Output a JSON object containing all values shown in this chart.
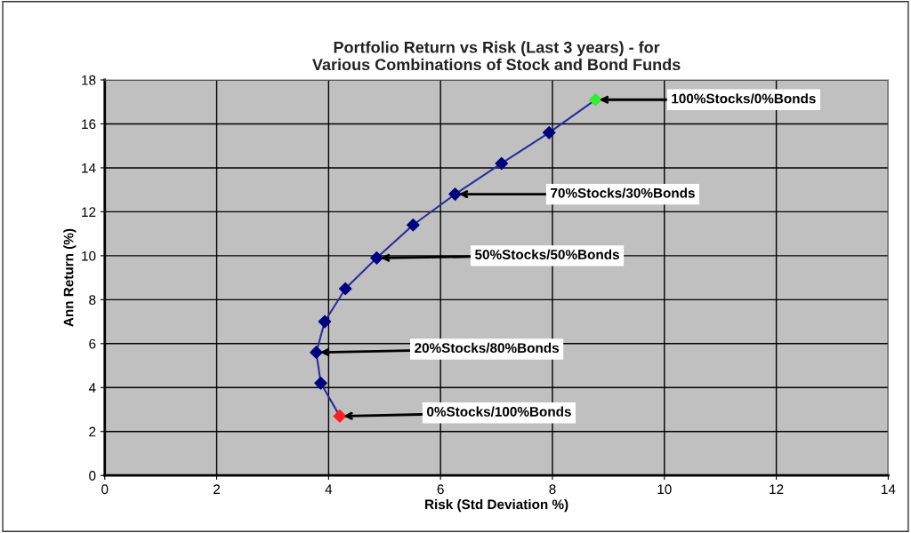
{
  "chart_data": {
    "type": "line",
    "title": "Portfolio Return vs Risk (Last 3 years) - for\nVarious Combinations of Stock and Bond Funds",
    "xlabel": "Risk (Std Deviation %)",
    "ylabel": "Ann Return (%)",
    "x": [
      4.2,
      3.86,
      3.78,
      3.93,
      4.3,
      4.86,
      5.51,
      6.26,
      7.09,
      7.94,
      8.77
    ],
    "series": [
      {
        "color": "#2b2b9e",
        "values": [
          2.7,
          4.2,
          5.6,
          7.0,
          8.5,
          9.9,
          11.4,
          12.8,
          14.2,
          15.6,
          17.1
        ],
        "colors": [
          "#ff2020",
          "#000080",
          "#000080",
          "#000080",
          "#000080",
          "#000080",
          "#000080",
          "#000080",
          "#000080",
          "#000080",
          "#33ee33"
        ]
      }
    ],
    "marker": "diamond",
    "line_style": "solid",
    "xlim": [
      0,
      14
    ],
    "xticks": [
      0,
      2,
      4,
      6,
      8,
      10,
      12,
      14
    ],
    "ylim": [
      0,
      18
    ],
    "yticks": [
      0,
      2,
      4,
      6,
      8,
      10,
      12,
      14,
      16,
      18
    ],
    "grid": true,
    "legend": false,
    "annotations": [
      {
        "text": "100%Stocks/0%Bonds",
        "x": 8.77,
        "y": 17.1
      },
      {
        "text": "70%Stocks/30%Bonds",
        "x": 6.26,
        "y": 12.8
      },
      {
        "text": "50%Stocks/50%Bonds",
        "x": 4.86,
        "y": 9.9
      },
      {
        "text": "20%Stocks/80%Bonds",
        "x": 3.78,
        "y": 5.6
      },
      {
        "text": "0%Stocks/100%Bonds",
        "x": 4.2,
        "y": 2.7
      }
    ]
  }
}
